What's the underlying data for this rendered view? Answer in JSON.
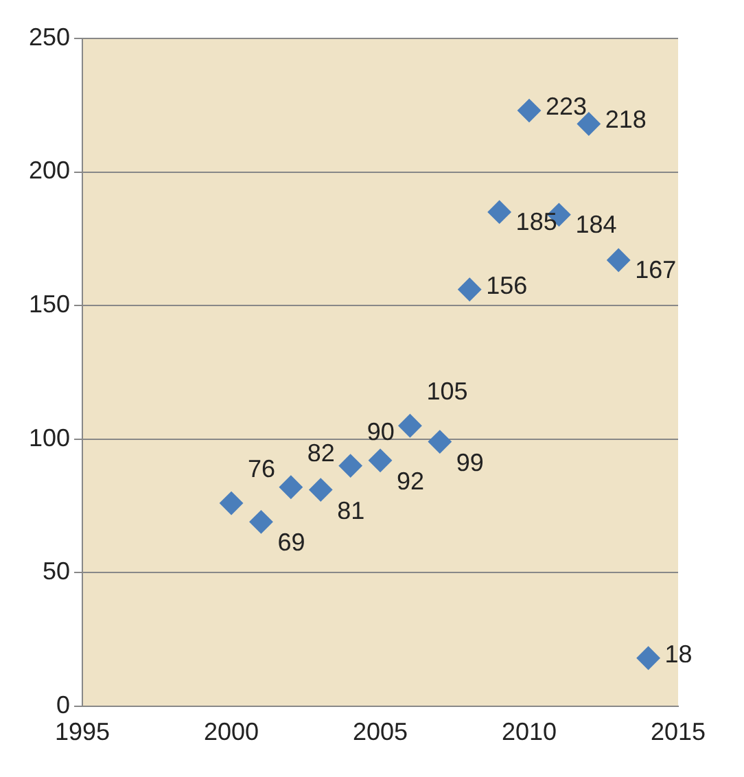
{
  "chart_data": {
    "type": "scatter",
    "x": [
      2000,
      2001,
      2002,
      2003,
      2004,
      2005,
      2006,
      2007,
      2008,
      2009,
      2010,
      2011,
      2012,
      2013,
      2014
    ],
    "series": [
      {
        "color": "#4a7ebb",
        "values": [
          76,
          69,
          82,
          81,
          90,
          92,
          105,
          99,
          156,
          185,
          223,
          184,
          218,
          167,
          18
        ]
      }
    ],
    "xlim": [
      1995,
      2015
    ],
    "xticks": [
      1995,
      2000,
      2005,
      2010,
      2015
    ],
    "ylim": [
      0,
      250
    ],
    "yticks": [
      0,
      50,
      100,
      150,
      200,
      250
    ],
    "grid": "y",
    "marker": "diamond",
    "data_labels": true,
    "legend": false
  }
}
